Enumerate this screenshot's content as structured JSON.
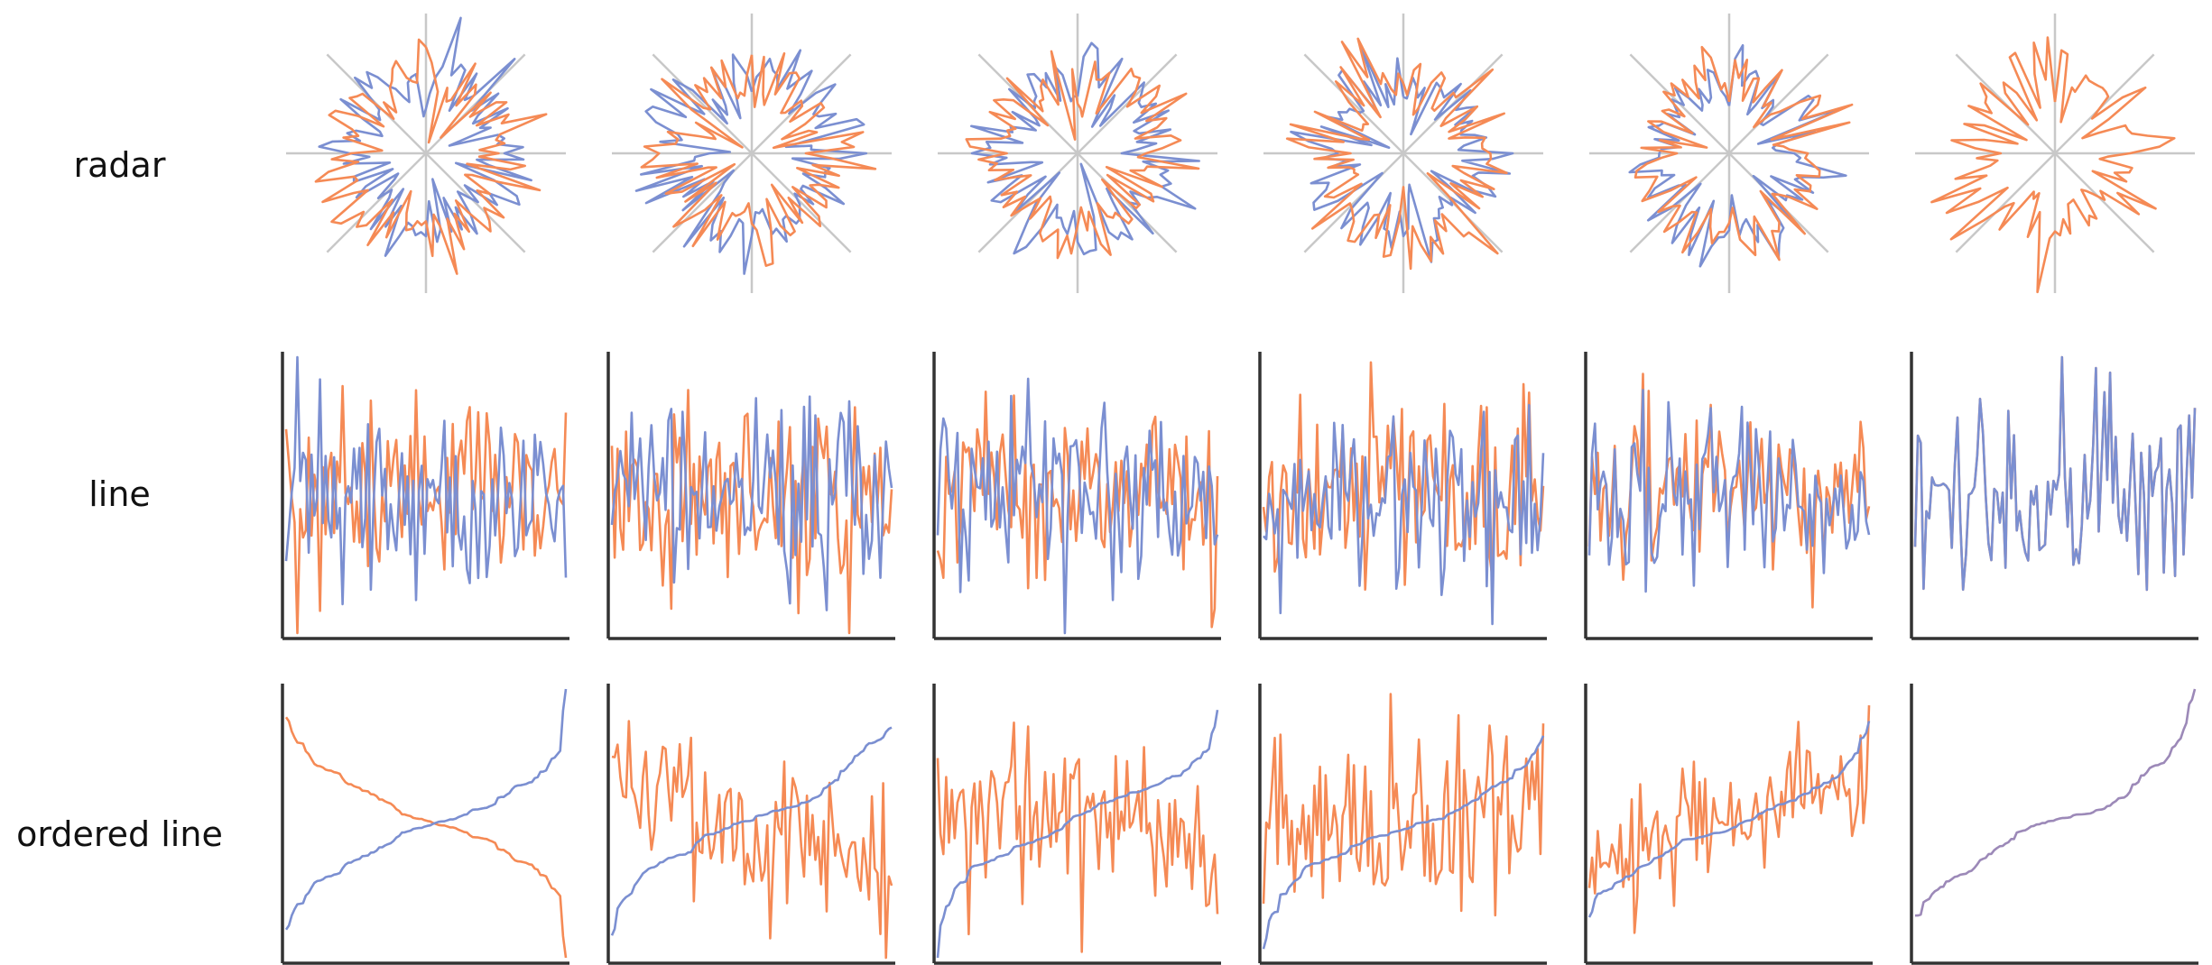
{
  "row_labels": {
    "radar": "radar",
    "line": "line",
    "ordered_line": "ordered line"
  },
  "colors": {
    "series_a": "#7b8fd1",
    "series_b": "#f58a55",
    "radar_axes": "#c8c8c8",
    "plot_axes": "#333333",
    "identical_overlap": "#9c89b8"
  },
  "chart_data": [
    {
      "type": "line",
      "row": "radar",
      "column": 1,
      "projection": "polar",
      "points_per_series": 100,
      "series": [
        {
          "color": "#7b8fd1",
          "pair_correlation": -1.0
        },
        {
          "color": "#f58a55"
        }
      ]
    },
    {
      "type": "line",
      "row": "radar",
      "column": 2,
      "projection": "polar",
      "points_per_series": 100,
      "series": [
        {
          "color": "#7b8fd1",
          "pair_correlation": -0.6
        },
        {
          "color": "#f58a55"
        }
      ]
    },
    {
      "type": "line",
      "row": "radar",
      "column": 3,
      "projection": "polar",
      "points_per_series": 100,
      "series": [
        {
          "color": "#7b8fd1",
          "pair_correlation": -0.2
        },
        {
          "color": "#f58a55"
        }
      ]
    },
    {
      "type": "line",
      "row": "radar",
      "column": 4,
      "projection": "polar",
      "points_per_series": 100,
      "series": [
        {
          "color": "#7b8fd1",
          "pair_correlation": 0.2
        },
        {
          "color": "#f58a55"
        }
      ]
    },
    {
      "type": "line",
      "row": "radar",
      "column": 5,
      "projection": "polar",
      "points_per_series": 100,
      "series": [
        {
          "color": "#7b8fd1",
          "pair_correlation": 0.6
        },
        {
          "color": "#f58a55"
        }
      ]
    },
    {
      "type": "line",
      "row": "radar",
      "column": 6,
      "projection": "polar",
      "points_per_series": 100,
      "series": [
        {
          "color": "#7b8fd1",
          "pair_correlation": 1.0
        },
        {
          "color": "#f58a55"
        }
      ]
    },
    {
      "type": "line",
      "row": "line",
      "column": 1,
      "points_per_series": 100,
      "series": [
        {
          "color": "#7b8fd1",
          "pair_correlation": -1.0
        },
        {
          "color": "#f58a55"
        }
      ]
    },
    {
      "type": "line",
      "row": "line",
      "column": 2,
      "points_per_series": 100,
      "series": [
        {
          "color": "#7b8fd1",
          "pair_correlation": -0.6
        },
        {
          "color": "#f58a55"
        }
      ]
    },
    {
      "type": "line",
      "row": "line",
      "column": 3,
      "points_per_series": 100,
      "series": [
        {
          "color": "#7b8fd1",
          "pair_correlation": -0.2
        },
        {
          "color": "#f58a55"
        }
      ]
    },
    {
      "type": "line",
      "row": "line",
      "column": 4,
      "points_per_series": 100,
      "series": [
        {
          "color": "#7b8fd1",
          "pair_correlation": 0.2
        },
        {
          "color": "#f58a55"
        }
      ]
    },
    {
      "type": "line",
      "row": "line",
      "column": 5,
      "points_per_series": 100,
      "series": [
        {
          "color": "#7b8fd1",
          "pair_correlation": 0.6
        },
        {
          "color": "#f58a55"
        }
      ]
    },
    {
      "type": "line",
      "row": "line",
      "column": 6,
      "points_per_series": 100,
      "series": [
        {
          "color": "#7b8fd1",
          "pair_correlation": 1.0
        },
        {
          "color": "#f58a55"
        }
      ]
    },
    {
      "type": "line",
      "row": "ordered line",
      "column": 1,
      "points_per_series": 100,
      "ordered_by": "series_a ascending",
      "series": [
        {
          "color": "#7b8fd1",
          "pair_correlation": -1.0
        },
        {
          "color": "#f58a55"
        }
      ]
    },
    {
      "type": "line",
      "row": "ordered line",
      "column": 2,
      "points_per_series": 100,
      "ordered_by": "series_a ascending",
      "series": [
        {
          "color": "#7b8fd1",
          "pair_correlation": -0.6
        },
        {
          "color": "#f58a55"
        }
      ]
    },
    {
      "type": "line",
      "row": "ordered line",
      "column": 3,
      "points_per_series": 100,
      "ordered_by": "series_a ascending",
      "series": [
        {
          "color": "#7b8fd1",
          "pair_correlation": -0.2
        },
        {
          "color": "#f58a55"
        }
      ]
    },
    {
      "type": "line",
      "row": "ordered line",
      "column": 4,
      "points_per_series": 100,
      "ordered_by": "series_a ascending",
      "series": [
        {
          "color": "#7b8fd1",
          "pair_correlation": 0.2
        },
        {
          "color": "#f58a55"
        }
      ]
    },
    {
      "type": "line",
      "row": "ordered line",
      "column": 5,
      "points_per_series": 100,
      "ordered_by": "series_a ascending",
      "series": [
        {
          "color": "#7b8fd1",
          "pair_correlation": 0.6
        },
        {
          "color": "#f58a55"
        }
      ]
    },
    {
      "type": "line",
      "row": "ordered line",
      "column": 6,
      "points_per_series": 100,
      "ordered_by": "series_a ascending",
      "series": [
        {
          "color": "#7b8fd1",
          "pair_correlation": 1.0
        },
        {
          "color": "#f58a55"
        }
      ]
    }
  ]
}
